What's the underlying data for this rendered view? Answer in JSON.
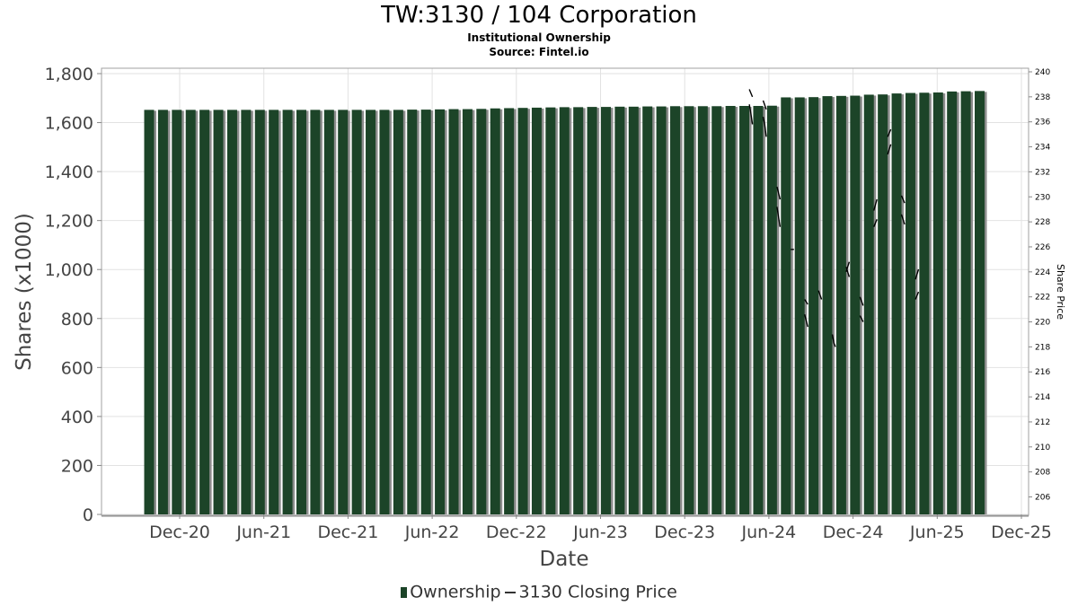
{
  "title": "TW:3130 / 104 Corporation",
  "subtitle": "Institutional Ownership",
  "source": "Source: Fintel.io",
  "legend": {
    "bar_label": "Ownership",
    "line_label": "3130 Closing Price"
  },
  "chart_data": {
    "type": "bar",
    "xlabel": "Date",
    "ylabel": "Shares (x1000)",
    "y2label": "Share Price",
    "ylim": [
      0,
      1800
    ],
    "y2lim": [
      204.6,
      240
    ],
    "yticks": [
      "0",
      "200",
      "400",
      "600",
      "800",
      "1,000",
      "1,200",
      "1,400",
      "1,600",
      "1,800"
    ],
    "y2ticks": [
      "206",
      "208",
      "210",
      "212",
      "214",
      "216",
      "218",
      "220",
      "222",
      "224",
      "226",
      "228",
      "230",
      "232",
      "234",
      "236",
      "238",
      "240"
    ],
    "xticks": [
      "Dec-20",
      "Jun-21",
      "Dec-21",
      "Jun-22",
      "Dec-22",
      "Jun-23",
      "Dec-23",
      "Jun-24",
      "Dec-24",
      "Jun-25",
      "Dec-25"
    ],
    "grid": true,
    "legend_position": "bottom",
    "colors": {
      "bar": "#1c4428",
      "bar_shadow": "#8c8c8c",
      "line": "#000000"
    },
    "series": [
      {
        "name": "Ownership",
        "values": [
          1652,
          1652,
          1652,
          1652,
          1652,
          1652,
          1652,
          1652,
          1652,
          1652,
          1652,
          1652,
          1652,
          1652,
          1652,
          1652,
          1652,
          1652,
          1652,
          1653,
          1653,
          1654,
          1655,
          1655,
          1656,
          1658,
          1659,
          1660,
          1661,
          1662,
          1663,
          1663,
          1664,
          1664,
          1665,
          1665,
          1666,
          1666,
          1667,
          1667,
          1667,
          1667,
          1668,
          1668,
          1668,
          1669,
          1703,
          1703,
          1704,
          1708,
          1709,
          1710,
          1714,
          1715,
          1719,
          1721,
          1722,
          1723,
          1727,
          1728,
          1729
        ]
      },
      {
        "name": "3130 Closing Price",
        "segments": [
          [
            [
              238.6,
              238.0
            ],
            [
              237.4,
              236.7,
              235.8
            ]
          ],
          [
            [
              237.7,
              237.0
            ],
            [
              236.4,
              235.8,
              234.8
            ]
          ],
          [
            [
              230.8,
              229.8
            ],
            [
              229.2,
              228.4,
              227.6
            ]
          ],
          [
            [
              225.8,
              225.8
            ]
          ],
          [
            [
              221.8,
              221.4
            ],
            [
              220.6,
              219.6
            ]
          ],
          [
            [
              222.5,
              221.8
            ]
          ],
          [
            [
              219.0,
              218.3,
              218.0
            ]
          ],
          [
            [
              224.0,
              224.8
            ],
            [
              224.4,
              223.6
            ]
          ],
          [
            [
              222.0,
              221.3
            ],
            [
              220.5,
              220.0
            ]
          ],
          [
            [
              227.6,
              228.2
            ],
            [
              228.9,
              229.8
            ]
          ],
          [
            [
              233.4,
              234.2
            ],
            [
              234.8,
              235.4
            ]
          ],
          [
            [
              230.1,
              229.5
            ],
            [
              228.6,
              227.8
            ]
          ],
          [
            [
              221.8,
              222.4
            ],
            [
              223.4,
              224.2
            ]
          ]
        ]
      }
    ]
  }
}
